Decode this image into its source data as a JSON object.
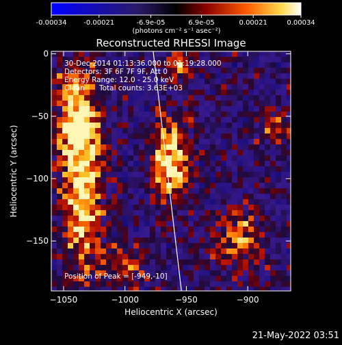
{
  "chart_data": {
    "type": "heatmap",
    "title": "Reconstructed RHESSI Image",
    "xlabel": "Heliocentric X (arcsec)",
    "ylabel": "Heliocentric Y (arcsec)",
    "xlim": [
      -1060,
      -865
    ],
    "ylim": [
      -190,
      2
    ],
    "xticks": [
      -1050,
      -1000,
      -950,
      -900
    ],
    "yticks": [
      0,
      -50,
      -100,
      -150
    ],
    "colorbar": {
      "min": -0.00034,
      "max": 0.00034,
      "ticks": [
        -0.00034,
        -0.00021,
        -6.9e-05,
        6.9e-05,
        0.00021,
        0.00034
      ],
      "tick_labels": [
        "-0.00034",
        "-0.00021",
        "-6.9e-05",
        "6.9e-05",
        "0.00021",
        "0.00034"
      ],
      "unit_label": "(photons cm⁻² s⁻¹ asec⁻²)"
    },
    "annotations": {
      "time": "30-Dec-2014 01:13:36.000 to 01:19:28.000",
      "detectors": "Detectors: 3F 6F 7F 9F, Att 0",
      "energy": "Energy Range: 12.0 - 25.0 keV",
      "algorithm": "Clean",
      "counts": "Total counts: 3.63E+03",
      "peak": "Position of Peak = [-949,-10]"
    },
    "limb_line": {
      "x": [
        -977,
        -954
      ],
      "y": [
        2,
        -190
      ]
    },
    "emission_sources": [
      {
        "x": -1035,
        "y": -95,
        "sx": 12,
        "sy": 55,
        "amp": 1.0
      },
      {
        "x": -1040,
        "y": -60,
        "sx": 9,
        "sy": 10,
        "amp": 0.6
      },
      {
        "x": -963,
        "y": -85,
        "sx": 10,
        "sy": 25,
        "amp": 0.95
      },
      {
        "x": -955,
        "y": -10,
        "sx": 8,
        "sy": 8,
        "amp": 0.75
      },
      {
        "x": -905,
        "y": -150,
        "sx": 14,
        "sy": 18,
        "amp": 0.6
      },
      {
        "x": -880,
        "y": -60,
        "sx": 8,
        "sy": 10,
        "amp": 0.5
      },
      {
        "x": -1045,
        "y": -30,
        "sx": 8,
        "sy": 12,
        "amp": 0.5
      },
      {
        "x": -1000,
        "y": -170,
        "sx": 14,
        "sy": 10,
        "amp": 0.5
      }
    ]
  },
  "footer": {
    "date": "21-May-2022 03:51"
  }
}
